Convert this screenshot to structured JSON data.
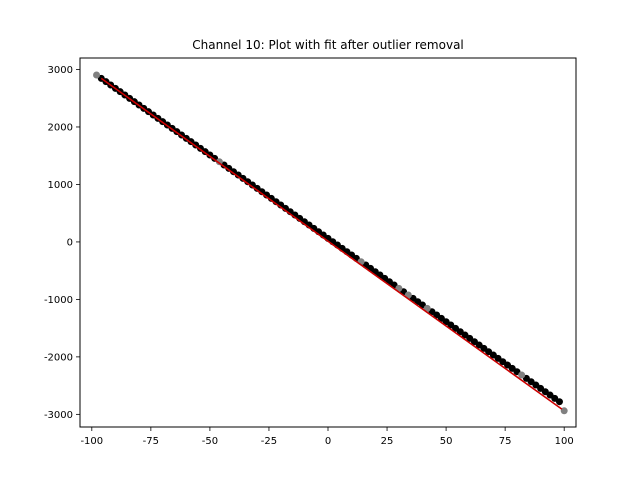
{
  "chart_data": {
    "type": "scatter",
    "title": "Channel 10: Plot with fit after outlier removal",
    "xlabel": "",
    "ylabel": "",
    "xlim": [
      -105,
      105
    ],
    "ylim": [
      -3220,
      3200
    ],
    "grid": false,
    "x_ticks": [
      -100,
      -75,
      -50,
      -25,
      0,
      25,
      50,
      75,
      100
    ],
    "y_ticks": [
      -3000,
      -2000,
      -1000,
      0,
      1000,
      2000,
      3000
    ],
    "series": [
      {
        "role": "inliers",
        "marker": "circle",
        "color": "#000000",
        "x": [
          -96,
          -94,
          -92,
          -90,
          -88,
          -86,
          -84,
          -82,
          -80,
          -78,
          -76,
          -74,
          -72,
          -70,
          -68,
          -66,
          -64,
          -62,
          -60,
          -58,
          -56,
          -54,
          -52,
          -50,
          -48,
          -44,
          -42,
          -40,
          -38,
          -36,
          -34,
          -32,
          -30,
          -28,
          -26,
          -24,
          -22,
          -20,
          -18,
          -16,
          -14,
          -12,
          -10,
          -8,
          -6,
          -4,
          -2,
          0,
          2,
          4,
          6,
          8,
          10,
          12,
          16,
          18,
          20,
          22,
          24,
          26,
          28,
          32,
          36,
          38,
          40,
          44,
          46,
          48,
          50,
          52,
          54,
          56,
          58,
          60,
          62,
          64,
          66,
          68,
          70,
          72,
          74,
          76,
          78,
          80,
          84,
          86,
          88,
          90,
          92,
          94,
          96,
          98
        ],
        "y": [
          2846,
          2788,
          2730,
          2672,
          2614,
          2556,
          2498,
          2440,
          2382,
          2324,
          2266,
          2208,
          2150,
          2092,
          2034,
          1976,
          1918,
          1860,
          1802,
          1744,
          1686,
          1628,
          1570,
          1512,
          1454,
          1338,
          1280,
          1222,
          1164,
          1106,
          1048,
          990,
          932,
          874,
          816,
          758,
          700,
          642,
          584,
          526,
          468,
          410,
          352,
          294,
          236,
          178,
          120,
          62,
          4,
          -54,
          -112,
          -170,
          -228,
          -286,
          -402,
          -460,
          -518,
          -576,
          -634,
          -692,
          -750,
          -866,
          -982,
          -1040,
          -1098,
          -1214,
          -1272,
          -1330,
          -1388,
          -1446,
          -1504,
          -1562,
          -1620,
          -1678,
          -1736,
          -1794,
          -1852,
          -1910,
          -1968,
          -2026,
          -2084,
          -2142,
          -2200,
          -2258,
          -2374,
          -2432,
          -2490,
          -2548,
          -2606,
          -2664,
          -2722,
          -2780
        ]
      },
      {
        "role": "outliers",
        "marker": "circle",
        "color": "#808080",
        "x": [
          -98,
          -46,
          14,
          30,
          34,
          42,
          82,
          100
        ],
        "y": [
          2904,
          1396,
          -344,
          -808,
          -924,
          -1156,
          -2316,
          -2938
        ]
      },
      {
        "role": "fit",
        "type": "line",
        "color": "#cc0000",
        "x": [
          -96,
          99
        ],
        "y": [
          2846,
          -2909
        ]
      }
    ]
  }
}
